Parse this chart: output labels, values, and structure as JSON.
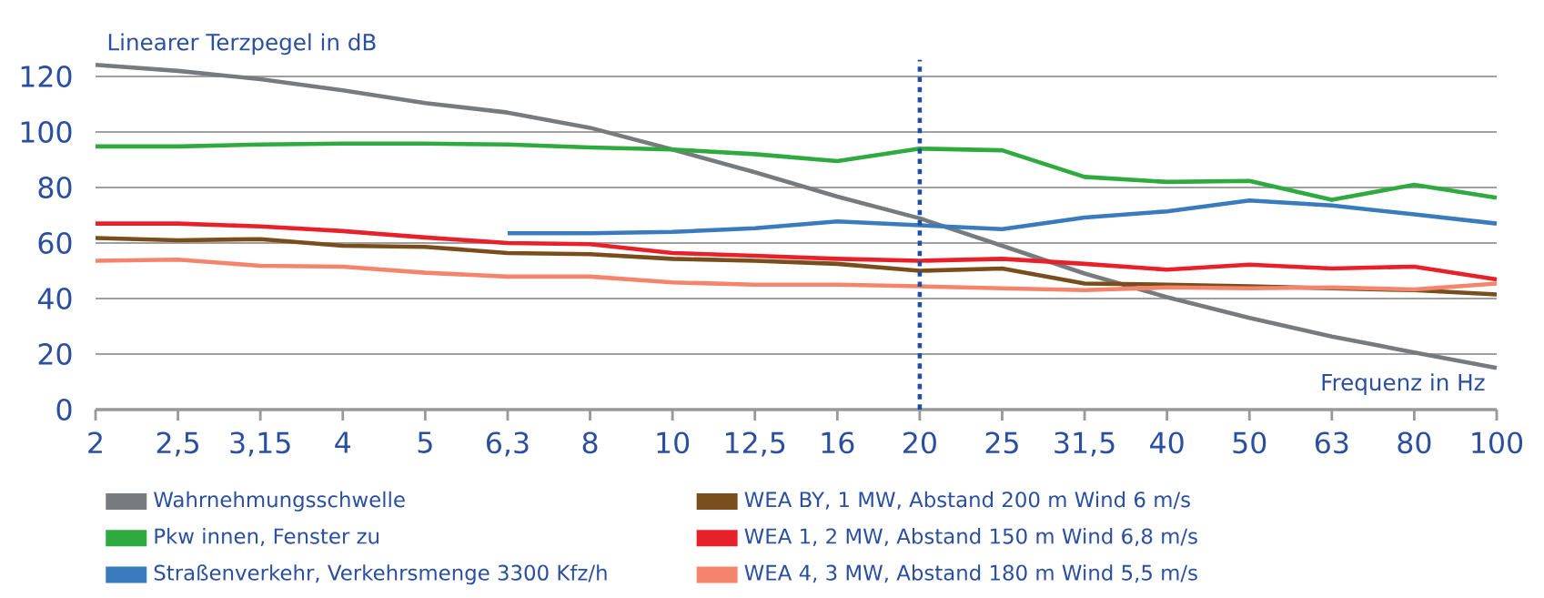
{
  "chart_data": {
    "type": "line",
    "xlabel": "Frequenz in Hz",
    "ylabel": "Linearer Terzpegel in dB",
    "categories": [
      "2",
      "2,5",
      "3,15",
      "4",
      "5",
      "6,3",
      "8",
      "10",
      "12,5",
      "16",
      "20",
      "25",
      "31,5",
      "40",
      "50",
      "63",
      "80",
      "100"
    ],
    "ylim": [
      0,
      126
    ],
    "yticks": [
      0,
      20,
      40,
      60,
      80,
      100,
      120
    ],
    "grid": "y",
    "legend": "bottom",
    "ref_lines": [
      {
        "axis": "x",
        "value": "20",
        "color": "#1f4ea3",
        "line_style": "dotted"
      }
    ],
    "series": [
      {
        "name": "Wahrnehmungsschwelle",
        "color": "#777b7e",
        "values": [
          124.2,
          122,
          119,
          115,
          110.4,
          107,
          101.5,
          93.7,
          85.5,
          76.7,
          68.9,
          59,
          49,
          40.5,
          33,
          26.3,
          20.6,
          15
        ]
      },
      {
        "name": "Pkw innen, Fenster zu",
        "color": "#2eaa3f",
        "values": [
          94.8,
          94.8,
          95.5,
          95.8,
          95.8,
          95.5,
          94.4,
          93.7,
          92,
          89.5,
          94,
          93.4,
          83.8,
          82,
          82.4,
          75.6,
          81,
          76.3
        ]
      },
      {
        "name": "Straßenverkehr, Verkehrsmenge 3300 Kfz/h",
        "color": "#3a7bbd",
        "values": [
          null,
          null,
          null,
          null,
          null,
          63.5,
          63.5,
          64,
          65.3,
          67.8,
          66.4,
          65,
          69.2,
          71.4,
          75.3,
          73.5,
          70.3,
          67
        ]
      },
      {
        "name": "WEA BY, 1 MW, Abstand 200 m Wind 6 m/s",
        "color": "#7a4e1c",
        "values": [
          61.8,
          61,
          61.4,
          59,
          58.6,
          56.4,
          56,
          54.3,
          53.6,
          52.5,
          50,
          50.8,
          45.4,
          45,
          44.4,
          43.7,
          43,
          41.5
        ]
      },
      {
        "name": "WEA 1, 2 MW, Abstand 150 m Wind 6,8 m/s",
        "color": "#e8202a",
        "values": [
          67,
          67,
          66,
          64.3,
          62,
          60,
          59.6,
          56.4,
          55.4,
          54.3,
          53.6,
          54.3,
          52.5,
          50.4,
          52.2,
          50.8,
          51.5,
          46.9
        ]
      },
      {
        "name": "WEA 4, 3 MW, Abstand 180 m Wind 5,5 m/s",
        "color": "#f4856c",
        "values": [
          53.6,
          54,
          51.8,
          51.5,
          49.3,
          47.9,
          47.9,
          45.8,
          45,
          45,
          44.4,
          43.7,
          43,
          44,
          43.7,
          44,
          43.3,
          45.4
        ]
      }
    ]
  }
}
